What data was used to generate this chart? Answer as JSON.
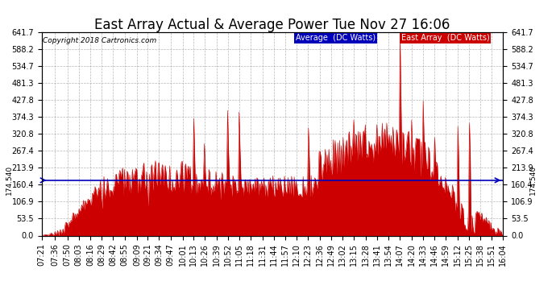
{
  "title": "East Array Actual & Average Power Tue Nov 27 16:06",
  "copyright": "Copyright 2018 Cartronics.com",
  "average_value": 174.54,
  "average_label": "Average  (DC Watts)",
  "east_array_label": "East Array  (DC Watts)",
  "ymin": 0.0,
  "ymax": 641.7,
  "yticks": [
    0.0,
    53.5,
    106.9,
    160.4,
    213.9,
    267.4,
    320.8,
    374.3,
    427.8,
    481.3,
    534.7,
    588.2,
    641.7
  ],
  "y_side_label": "174.540",
  "background_color": "#ffffff",
  "grid_color": "#888888",
  "fill_color": "#cc0000",
  "line_color": "#0000bb",
  "title_fontsize": 12,
  "tick_fontsize": 7,
  "x_tick_labels": [
    "07:21",
    "07:36",
    "07:50",
    "08:03",
    "08:16",
    "08:29",
    "08:42",
    "08:55",
    "09:09",
    "09:21",
    "09:34",
    "09:47",
    "10:01",
    "10:13",
    "10:26",
    "10:39",
    "10:52",
    "11:05",
    "11:18",
    "11:31",
    "11:44",
    "11:57",
    "12:10",
    "12:23",
    "12:36",
    "12:49",
    "13:02",
    "13:15",
    "13:28",
    "13:41",
    "13:54",
    "14:07",
    "14:20",
    "14:33",
    "14:46",
    "14:59",
    "15:12",
    "15:25",
    "15:38",
    "15:51",
    "16:04"
  ]
}
